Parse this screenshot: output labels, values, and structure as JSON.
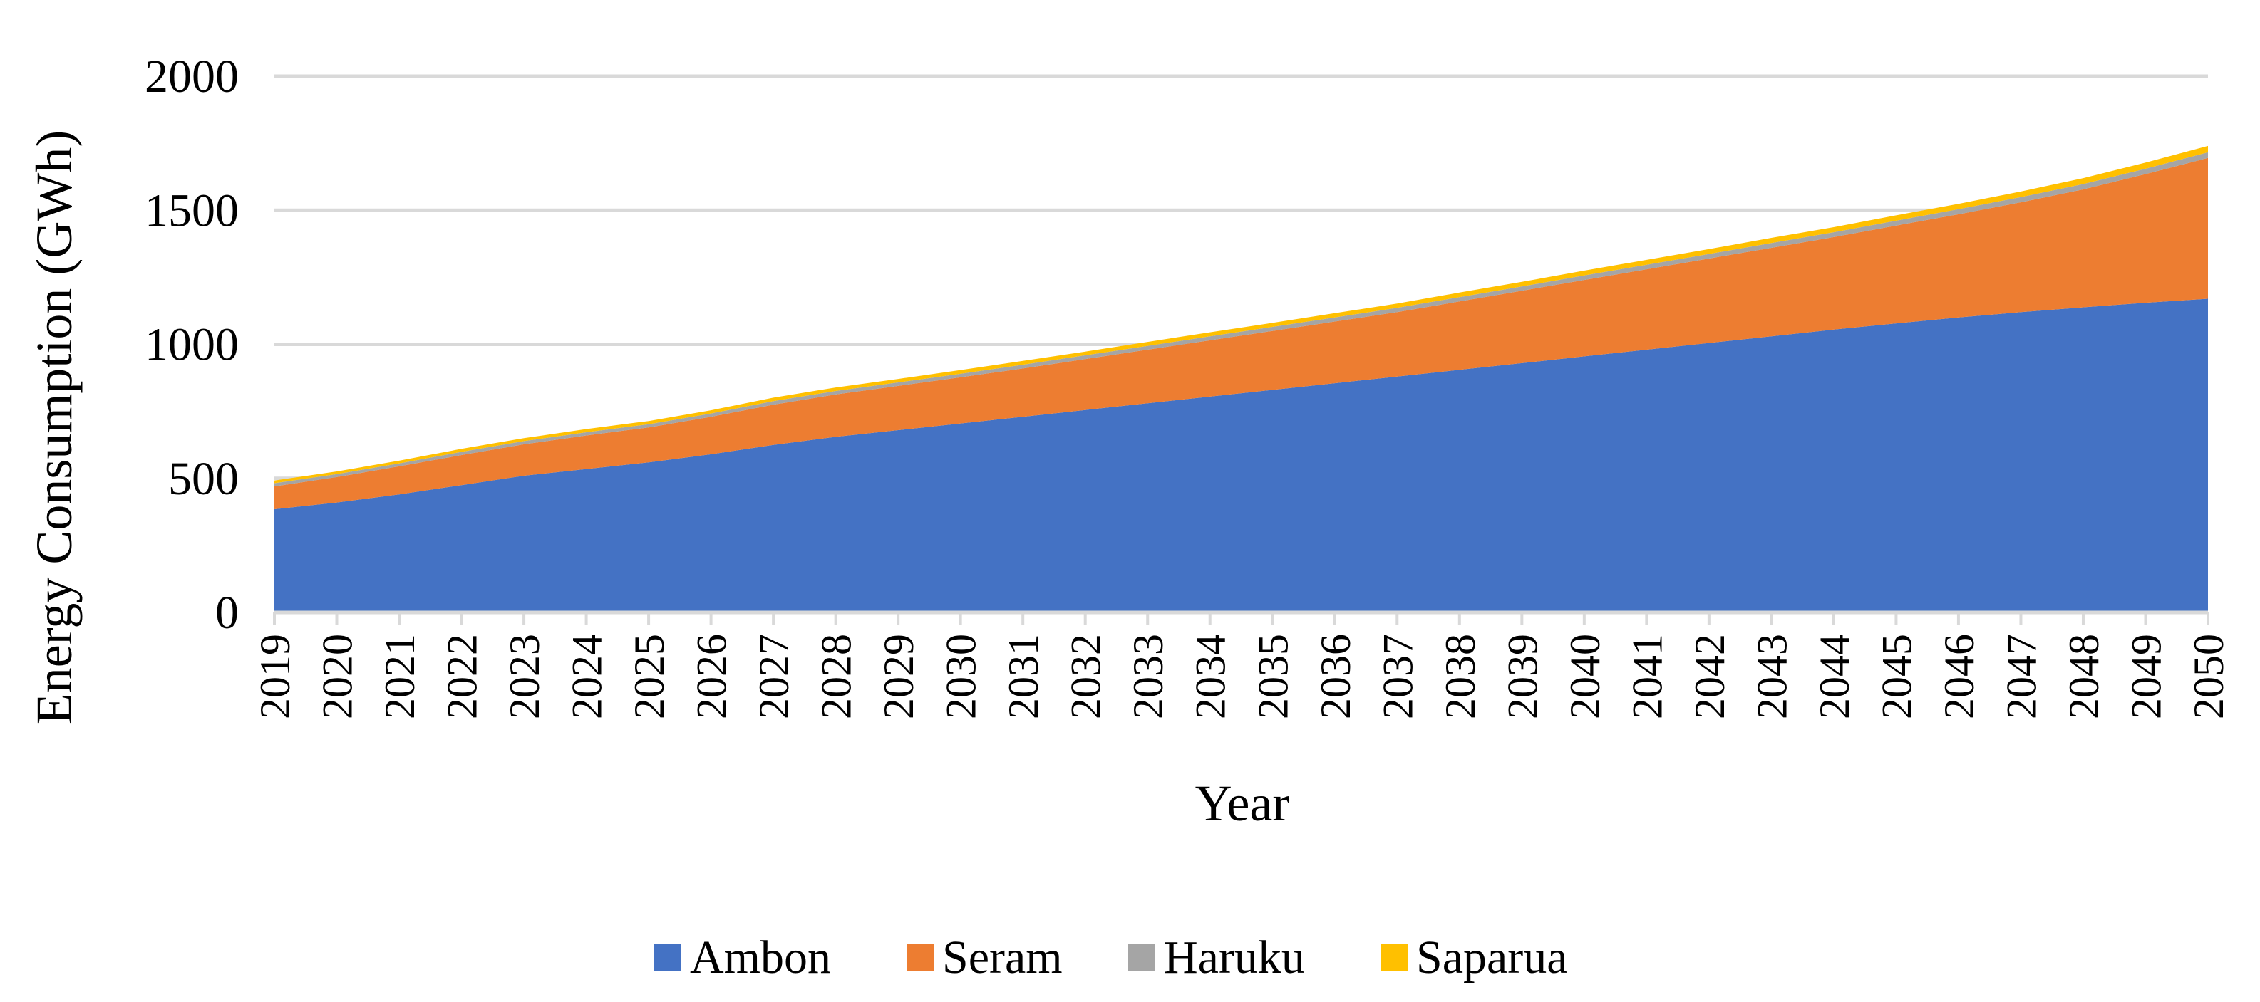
{
  "chart_data": {
    "type": "area",
    "stacked": true,
    "title": "",
    "xlabel": "Year",
    "ylabel": "Energy Consumption (GWh)",
    "ylim": [
      0,
      2000
    ],
    "yticks": [
      0,
      500,
      1000,
      1500,
      2000
    ],
    "grid": true,
    "legend_position": "bottom",
    "x": [
      "2019",
      "2020",
      "2021",
      "2022",
      "2023",
      "2024",
      "2025",
      "2026",
      "2027",
      "2028",
      "2029",
      "2030",
      "2031",
      "2032",
      "2033",
      "2034",
      "2035",
      "2036",
      "2037",
      "2038",
      "2039",
      "2040",
      "2041",
      "2042",
      "2043",
      "2044",
      "2045",
      "2046",
      "2047",
      "2048",
      "2049",
      "2050"
    ],
    "series": [
      {
        "name": "Ambon",
        "color": "#4472C4",
        "values": [
          385,
          410,
          440,
          475,
          510,
          535,
          560,
          590,
          625,
          655,
          680,
          705,
          730,
          755,
          780,
          805,
          830,
          855,
          880,
          905,
          930,
          955,
          980,
          1005,
          1030,
          1055,
          1078,
          1100,
          1120,
          1138,
          1155,
          1170
        ]
      },
      {
        "name": "Seram",
        "color": "#ED7D31",
        "values": [
          85,
          95,
          105,
          112,
          117,
          125,
          130,
          140,
          150,
          158,
          165,
          172,
          180,
          190,
          200,
          210,
          220,
          230,
          240,
          255,
          270,
          285,
          300,
          315,
          330,
          345,
          365,
          385,
          410,
          440,
          480,
          525
        ]
      },
      {
        "name": "Haruku",
        "color": "#A5A5A5",
        "values": [
          12,
          11,
          11,
          12,
          12,
          12,
          12,
          12,
          13,
          13,
          13,
          13,
          14,
          14,
          14,
          15,
          15,
          15,
          16,
          16,
          16,
          17,
          17,
          17,
          18,
          18,
          18,
          19,
          19,
          20,
          20,
          21
        ]
      },
      {
        "name": "Saparua",
        "color": "#FFC000",
        "values": [
          10,
          10,
          10,
          11,
          11,
          12,
          12,
          12,
          13,
          13,
          13,
          14,
          14,
          14,
          15,
          15,
          15,
          16,
          16,
          17,
          17,
          18,
          18,
          18,
          19,
          19,
          20,
          20,
          21,
          22,
          23,
          24
        ]
      }
    ]
  }
}
